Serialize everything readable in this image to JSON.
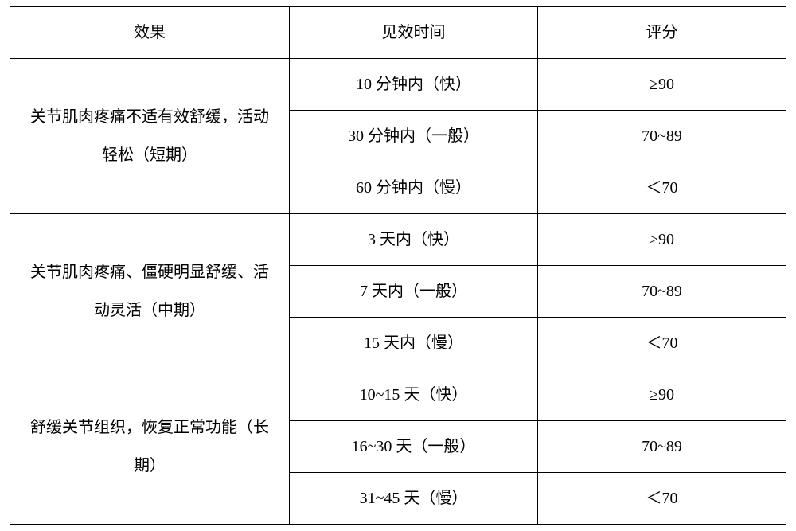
{
  "table": {
    "columns": [
      "效果",
      "见效时间",
      "评分"
    ],
    "groups": [
      {
        "effect": "关节肌肉疼痛不适有效舒缓，活动轻松（短期）",
        "rows": [
          {
            "time": "10 分钟内（快）",
            "score": "≥90"
          },
          {
            "time": "30 分钟内（一般）",
            "score": "70~89"
          },
          {
            "time": "60 分钟内（慢）",
            "score": "＜70"
          }
        ]
      },
      {
        "effect": "关节肌肉疼痛、僵硬明显舒缓、活动灵活（中期）",
        "rows": [
          {
            "time": "3 天内（快）",
            "score": "≥90"
          },
          {
            "time": "7 天内（一般）",
            "score": "70~89"
          },
          {
            "time": "15 天内（慢）",
            "score": "＜70"
          }
        ]
      },
      {
        "effect": "舒缓关节组织，恢复正常功能（长期）",
        "rows": [
          {
            "time": "10~15 天（快）",
            "score": "≥90"
          },
          {
            "time": "16~30 天（一般）",
            "score": "70~89"
          },
          {
            "time": "31~45 天（慢）",
            "score": "＜70"
          }
        ]
      }
    ]
  }
}
